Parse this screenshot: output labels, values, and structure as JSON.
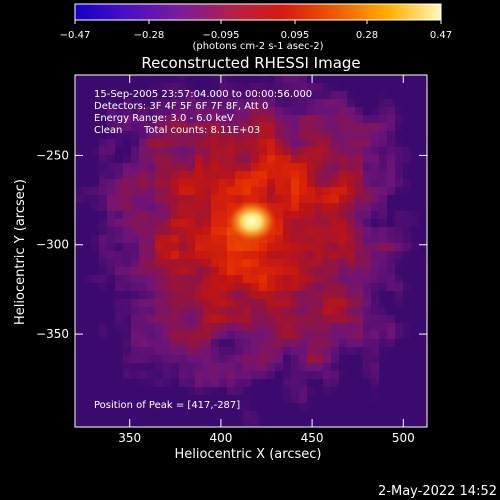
{
  "chart_data": {
    "type": "heatmap",
    "title": "Reconstructed RHESSI Image",
    "xlabel": "Heliocentric X (arcsec)",
    "ylabel": "Heliocentric Y (arcsec)",
    "xlim": [
      320,
      513
    ],
    "ylim": [
      -402,
      -205
    ],
    "x_ticks": [
      "350",
      "400",
      "450",
      "500"
    ],
    "y_ticks": [
      "-250",
      "-300",
      "-350"
    ],
    "x_tick_values": [
      350,
      400,
      450,
      500
    ],
    "y_tick_values": [
      -250,
      -300,
      -350
    ],
    "colorbar": {
      "range": [
        -0.47,
        0.47
      ],
      "tick_labels": [
        "-0.47",
        "-0.28",
        "-0.095",
        "0.095",
        "0.28",
        "0.47"
      ],
      "tick_values": [
        -0.47,
        -0.28,
        -0.095,
        0.095,
        0.28,
        0.47
      ],
      "unit_label": "(photons cm-2 s-1 asec-2)",
      "colors": [
        "#1400c8",
        "#4a10c0",
        "#7a1c9a",
        "#b0204a",
        "#d81a10",
        "#f05a00",
        "#ffb000",
        "#fff8c0"
      ]
    },
    "annotations": {
      "time": "15-Sep-2005 23:57:04.000 to 00:00:56.000",
      "detectors": "Detectors: 3F 4F 5F 6F 7F 8F, Att 0",
      "energy": "Energy Range: 3.0 - 6.0 keV",
      "clean": "Clean",
      "counts": "Total counts: 8.11E+03",
      "peak": "Position of Peak = [417,-287]"
    },
    "peak": {
      "x": 417,
      "y": -287
    },
    "timestamp": "2-May-2022 14:52"
  }
}
